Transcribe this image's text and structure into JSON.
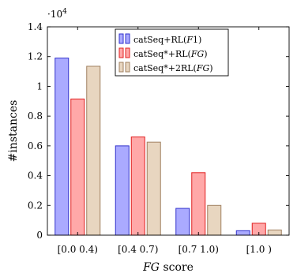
{
  "chart_data": {
    "type": "bar",
    "categories": [
      "[0.0 0.4)",
      "[0.4 0.7)",
      "[0.7 1.0)",
      "[1.0 )"
    ],
    "series": [
      {
        "name": "catSeq+RL(F1)",
        "values": [
          11900,
          6000,
          1800,
          300
        ],
        "color": "#aaaaff",
        "stroke": "#3232cc"
      },
      {
        "name": "catSeq*+RL(FG)",
        "values": [
          9150,
          6600,
          4200,
          800
        ],
        "color": "#ffa8a8",
        "stroke": "#e02020"
      },
      {
        "name": "catSeq*+2RL(FG)",
        "values": [
          11350,
          6250,
          2000,
          350
        ],
        "color": "#e8d6c0",
        "stroke": "#a08060"
      }
    ],
    "legend_labels": {
      "s0_prefix": "catSeq+RL(",
      "s0_italic": "F",
      "s0_mid": "1",
      "s0_suffix": ")",
      "s1_prefix": "catSeq*+RL(",
      "s1_italic": "FG",
      "s1_suffix": ")",
      "s2_prefix": "catSeq*+2RL(",
      "s2_italic": "FG",
      "s2_suffix": ")"
    },
    "xlabel_italic": "FG",
    "xlabel_rest": " score",
    "ylabel": "#instances",
    "ylim": [
      0,
      14000
    ],
    "yticks": [
      0,
      2000,
      4000,
      6000,
      8000,
      10000,
      12000,
      14000
    ],
    "ytick_labels": [
      "0",
      "0.2",
      "0.4",
      "0.6",
      "0.8",
      "1",
      "1.2",
      "1.4"
    ],
    "y_multiplier_base": "·10",
    "y_multiplier_exp": "4",
    "legend_position": "top-center",
    "grid": false
  }
}
